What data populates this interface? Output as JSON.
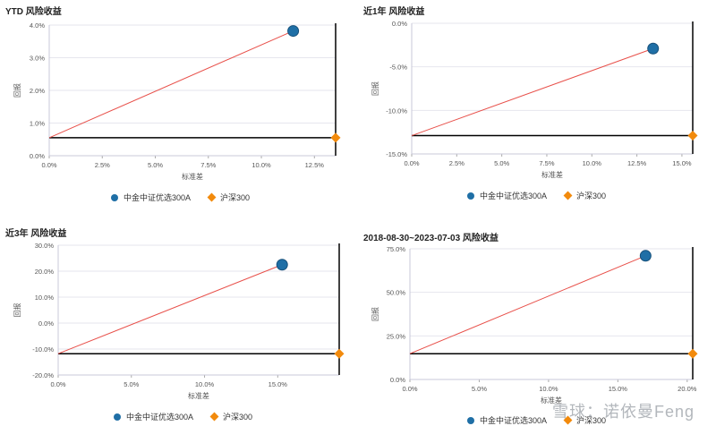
{
  "watermark": "雪球：诺依曼Feng",
  "colors": {
    "fund": "#1f6fa6",
    "benchmark": "#f28a0c",
    "line": "#e8504a",
    "axis": "#000000",
    "grid": "#e6e6ee"
  },
  "chart_data": [
    {
      "type": "scatter",
      "title": "YTD 风险收益",
      "xlabel": "标准差",
      "ylabel": "回报",
      "xlim": [
        0,
        13.5
      ],
      "ylim": [
        0,
        4
      ],
      "xticks": [
        "0.0%",
        "2.5%",
        "5.0%",
        "7.5%",
        "10.0%",
        "12.5%"
      ],
      "xtick_values": [
        0,
        2.5,
        5,
        7.5,
        10,
        12.5
      ],
      "yticks": [
        "0.0%",
        "1.0%",
        "2.0%",
        "3.0%",
        "4.0%"
      ],
      "ytick_values": [
        0,
        1,
        2,
        3,
        4
      ],
      "series": [
        {
          "name": "中金中证优选300A",
          "x": 11.5,
          "y": 3.82,
          "marker": "circle"
        },
        {
          "name": "沪深300",
          "x": 13.5,
          "y": 0.55,
          "marker": "diamond"
        }
      ],
      "risk_free": 0.55
    },
    {
      "type": "scatter",
      "title": "近1年 风险收益",
      "xlabel": "标准差",
      "ylabel": "回报",
      "xlim": [
        0,
        15.6
      ],
      "ylim": [
        -15,
        0
      ],
      "xticks": [
        "0.0%",
        "2.5%",
        "5.0%",
        "7.5%",
        "10.0%",
        "12.5%",
        "15.0%"
      ],
      "xtick_values": [
        0,
        2.5,
        5,
        7.5,
        10,
        12.5,
        15
      ],
      "yticks": [
        "-15.0%",
        "-10.0%",
        "-5.0%",
        "0.0%"
      ],
      "ytick_values": [
        -15,
        -10,
        -5,
        0
      ],
      "series": [
        {
          "name": "中金中证优选300A",
          "x": 13.4,
          "y": -2.9,
          "marker": "circle"
        },
        {
          "name": "沪深300",
          "x": 15.6,
          "y": -12.9,
          "marker": "diamond"
        }
      ],
      "risk_free": -12.9
    },
    {
      "type": "scatter",
      "title": "近3年 风险收益",
      "xlabel": "标准差",
      "ylabel": "回报",
      "xlim": [
        0,
        19.2
      ],
      "ylim": [
        -20,
        30
      ],
      "xticks": [
        "0.0%",
        "5.0%",
        "10.0%",
        "15.0%"
      ],
      "xtick_values": [
        0,
        5,
        10,
        15
      ],
      "yticks": [
        "-20.0%",
        "-10.0%",
        "0.0%",
        "10.0%",
        "20.0%",
        "30.0%"
      ],
      "ytick_values": [
        -20,
        -10,
        0,
        10,
        20,
        30
      ],
      "series": [
        {
          "name": "中金中证优选300A",
          "x": 15.3,
          "y": 22.5,
          "marker": "circle"
        },
        {
          "name": "沪深300",
          "x": 19.2,
          "y": -11.8,
          "marker": "diamond"
        }
      ],
      "risk_free": -11.8
    },
    {
      "type": "scatter",
      "title": "2018-08-30~2023-07-03 风险收益",
      "xlabel": "标准差",
      "ylabel": "回报",
      "xlim": [
        0,
        20.4
      ],
      "ylim": [
        0,
        75
      ],
      "xticks": [
        "0.0%",
        "5.0%",
        "10.0%",
        "15.0%",
        "20.0%"
      ],
      "xtick_values": [
        0,
        5,
        10,
        15,
        20
      ],
      "yticks": [
        "0.0%",
        "25.0%",
        "50.0%",
        "75.0%"
      ],
      "ytick_values": [
        0,
        25,
        50,
        75
      ],
      "series": [
        {
          "name": "中金中证优选300A",
          "x": 17.0,
          "y": 71.0,
          "marker": "circle"
        },
        {
          "name": "沪深300",
          "x": 20.4,
          "y": 14.8,
          "marker": "diamond"
        }
      ],
      "risk_free": 14.8
    }
  ]
}
